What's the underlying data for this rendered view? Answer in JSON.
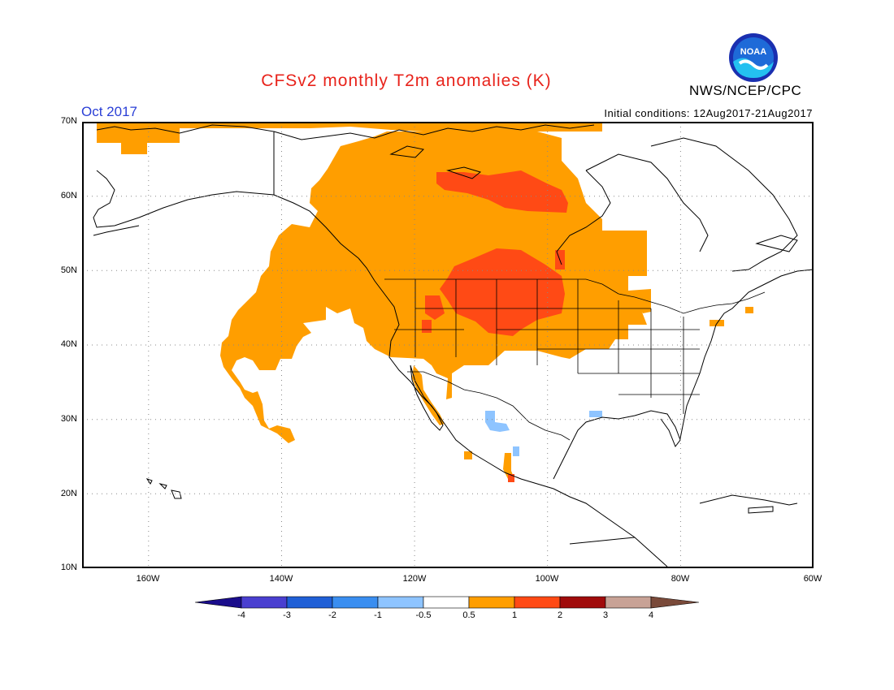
{
  "header": {
    "title": "CFSv2 monthly T2m anomalies (K)",
    "agency": "NWS/NCEP/CPC",
    "month": "Oct 2017",
    "initial_conditions": "Initial conditions: 12Aug2017-21Aug2017",
    "logo_text": "NOAA"
  },
  "map": {
    "lat_labels": [
      "70N",
      "60N",
      "50N",
      "40N",
      "30N",
      "20N",
      "10N"
    ],
    "lon_labels": [
      "160W",
      "140W",
      "120W",
      "100W",
      "80W",
      "60W"
    ],
    "colors": {
      "warm_0_5_to_1": "#ff9e00",
      "warm_1_to_2": "#ff4a15",
      "cool_minus1_to_minus0_5": "#8ec4ff",
      "coast": "#000000",
      "grid": "#888888"
    }
  },
  "colorbar": {
    "labels": [
      "-4",
      "-3",
      "-2",
      "-1",
      "-0.5",
      "0.5",
      "1",
      "2",
      "3",
      "4"
    ],
    "colors": [
      "#1a0d8c",
      "#4a3fd0",
      "#1f5fd6",
      "#3a8ef0",
      "#8ec4ff",
      "#ffffff",
      "#ff9e00",
      "#ff4a15",
      "#a00b0b",
      "#c8a296",
      "#7a4a3a"
    ]
  }
}
